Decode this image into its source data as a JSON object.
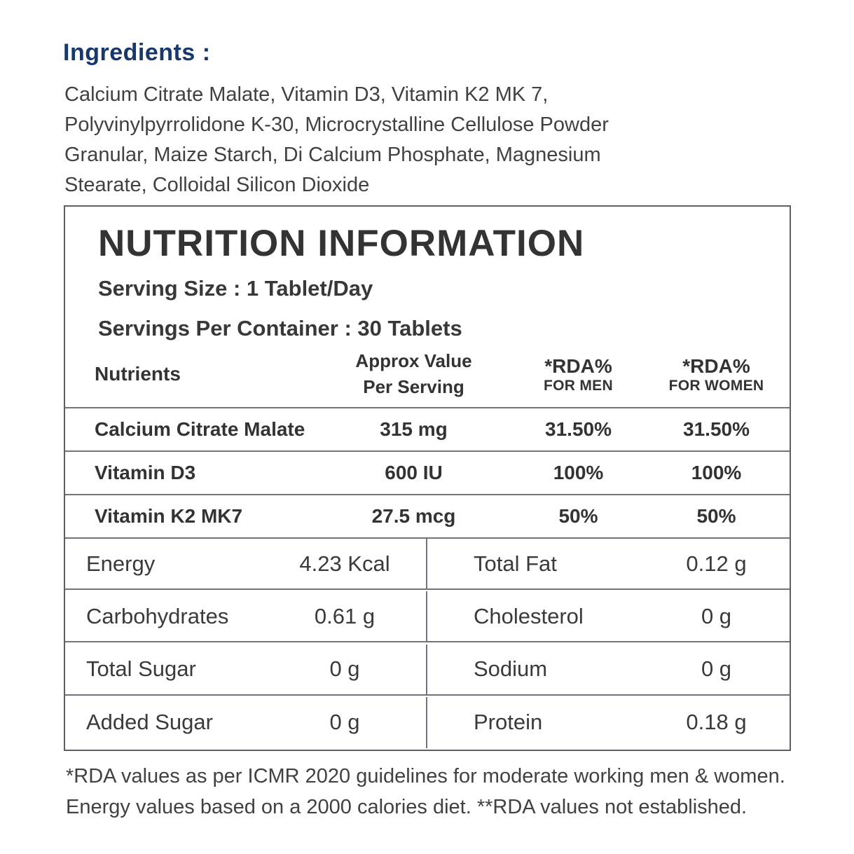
{
  "colors": {
    "heading_navy": "#16386D",
    "body_text": "#414141",
    "table_text": "#333333",
    "border_gray": "#5E5E66",
    "line_gray": "#73737B"
  },
  "ingredients": {
    "heading": "Ingredients :",
    "text": "Calcium Citrate Malate, Vitamin D3, Vitamin K2 MK 7,\nPolyvinylpyrrolidone K-30, Microcrystalline Cellulose Powder\nGranular, Maize Starch, Di Calcium Phosphate, Magnesium\nStearate, Colloidal Silicon Dioxide"
  },
  "nutrition": {
    "title": "NUTRITION INFORMATION",
    "serving_size": "Serving Size : 1 Tablet/Day",
    "servings_per_container": "Servings Per Container : 30 Tablets",
    "columns": {
      "nutrients": "Nutrients",
      "approx": "Approx Value\nPer Serving",
      "rda_men_top": "*RDA%",
      "rda_men_bottom": "FOR MEN",
      "rda_women_top": "*RDA%",
      "rda_women_bottom": "FOR WOMEN"
    },
    "rows": [
      {
        "name": "Calcium Citrate Malate",
        "value": "315 mg",
        "men": "31.50%",
        "women": "31.50%"
      },
      {
        "name": "Vitamin D3",
        "value": "600 IU",
        "men": "100%",
        "women": "100%"
      },
      {
        "name": "Vitamin K2 MK7",
        "value": "27.5 mcg",
        "men": "50%",
        "women": "50%"
      }
    ],
    "facts_left": [
      {
        "label": "Energy",
        "value": "4.23 Kcal"
      },
      {
        "label": "Carbohydrates",
        "value": "0.61 g"
      },
      {
        "label": "Total Sugar",
        "value": "0 g"
      },
      {
        "label": "Added Sugar",
        "value": "0 g"
      }
    ],
    "facts_right": [
      {
        "label": "Total Fat",
        "value": "0.12 g"
      },
      {
        "label": "Cholesterol",
        "value": "0 g"
      },
      {
        "label": "Sodium",
        "value": "0 g"
      },
      {
        "label": "Protein",
        "value": "0.18 g"
      }
    ]
  },
  "footnote": "*RDA values as per ICMR 2020 guidelines for moderate working men & women.\nEnergy values based on a 2000 calories diet. **RDA values not established."
}
